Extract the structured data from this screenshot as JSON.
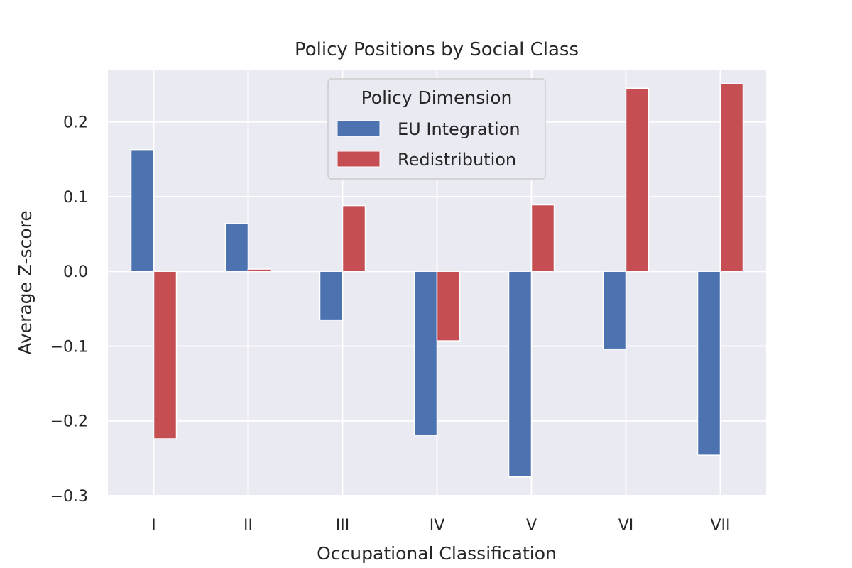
{
  "chart_data": {
    "type": "bar",
    "title": "Policy Positions by Social Class",
    "xlabel": "Occupational Classification",
    "ylabel": "Average Z-score",
    "categories": [
      "I",
      "II",
      "III",
      "IV",
      "V",
      "VI",
      "VII"
    ],
    "series": [
      {
        "name": "EU Integration",
        "color": "#4c72b0",
        "values": [
          0.163,
          0.064,
          -0.065,
          -0.219,
          -0.275,
          -0.104,
          -0.246
        ]
      },
      {
        "name": "Redistribution",
        "color": "#c44e52",
        "values": [
          -0.224,
          0.003,
          0.088,
          -0.093,
          0.089,
          0.245,
          0.251
        ]
      }
    ],
    "ylim": [
      -0.3,
      0.27
    ],
    "yticks": [
      -0.3,
      -0.2,
      -0.1,
      0.0,
      0.1,
      0.2
    ],
    "ytick_labels": [
      "−0.3",
      "−0.2",
      "−0.1",
      "0.0",
      "0.1",
      "0.2"
    ],
    "grid": true,
    "legend": {
      "title": "Policy Dimension",
      "placement": "upper-center"
    }
  }
}
